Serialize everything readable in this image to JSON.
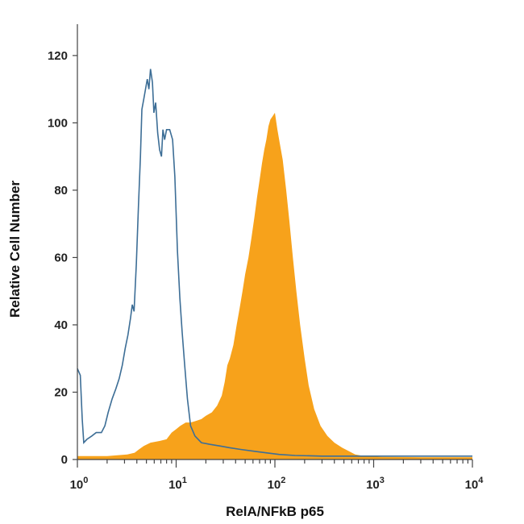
{
  "chart_data": {
    "type": "area",
    "title": "",
    "xlabel": "RelA/NFkB p65",
    "ylabel": "Relative Cell Number",
    "xscale": "log",
    "xlim": [
      1,
      10000
    ],
    "ylim": [
      0,
      125
    ],
    "x_ticks": [
      {
        "value": 1,
        "base": "10",
        "exp": "0"
      },
      {
        "value": 10,
        "base": "10",
        "exp": "1"
      },
      {
        "value": 100,
        "base": "10",
        "exp": "2"
      },
      {
        "value": 1000,
        "base": "10",
        "exp": "3"
      },
      {
        "value": 10000,
        "base": "10",
        "exp": "4"
      }
    ],
    "y_ticks": [
      "0",
      "20",
      "40",
      "60",
      "80",
      "100",
      "120"
    ],
    "grid": false,
    "legend": "none",
    "colors": {
      "stained": "#f7a21b",
      "control": "#3d6e96",
      "axis": "#444444"
    },
    "series": [
      {
        "style": "outline",
        "color": "#3d6e96",
        "points": [
          [
            1.0,
            27
          ],
          [
            1.07,
            25
          ],
          [
            1.12,
            12
          ],
          [
            1.16,
            5
          ],
          [
            1.25,
            6
          ],
          [
            1.4,
            7
          ],
          [
            1.55,
            8
          ],
          [
            1.75,
            8
          ],
          [
            1.9,
            10
          ],
          [
            2.05,
            14
          ],
          [
            2.25,
            18
          ],
          [
            2.45,
            21
          ],
          [
            2.65,
            24
          ],
          [
            2.85,
            28
          ],
          [
            3.05,
            33
          ],
          [
            3.25,
            37
          ],
          [
            3.45,
            42
          ],
          [
            3.6,
            46
          ],
          [
            3.75,
            44
          ],
          [
            3.95,
            58
          ],
          [
            4.15,
            75
          ],
          [
            4.35,
            90
          ],
          [
            4.5,
            104
          ],
          [
            4.7,
            107
          ],
          [
            4.9,
            110
          ],
          [
            5.1,
            113
          ],
          [
            5.3,
            110
          ],
          [
            5.5,
            116
          ],
          [
            5.75,
            112
          ],
          [
            5.95,
            103
          ],
          [
            6.2,
            106
          ],
          [
            6.5,
            97
          ],
          [
            6.8,
            92
          ],
          [
            7.1,
            90
          ],
          [
            7.35,
            98
          ],
          [
            7.65,
            95
          ],
          [
            8.0,
            98
          ],
          [
            8.6,
            98
          ],
          [
            9.2,
            95
          ],
          [
            9.7,
            84
          ],
          [
            10.3,
            62
          ],
          [
            10.9,
            48
          ],
          [
            11.5,
            38
          ],
          [
            12.2,
            28
          ],
          [
            13.0,
            18
          ],
          [
            14.0,
            10
          ],
          [
            15.5,
            7
          ],
          [
            18,
            5
          ],
          [
            22,
            4.5
          ],
          [
            28,
            4
          ],
          [
            35,
            3.5
          ],
          [
            45,
            3
          ],
          [
            60,
            2.5
          ],
          [
            80,
            2
          ],
          [
            110,
            1.5
          ],
          [
            160,
            1.2
          ],
          [
            300,
            1
          ],
          [
            1000,
            1
          ],
          [
            10000,
            1
          ]
        ]
      },
      {
        "style": "filled",
        "color": "#f7a21b",
        "points": [
          [
            1.0,
            1
          ],
          [
            2.0,
            1
          ],
          [
            3.2,
            1.5
          ],
          [
            3.8,
            2
          ],
          [
            4.2,
            3
          ],
          [
            4.7,
            4
          ],
          [
            5.5,
            5
          ],
          [
            6.8,
            5.5
          ],
          [
            8.0,
            6
          ],
          [
            9.0,
            8
          ],
          [
            10.0,
            9
          ],
          [
            11.0,
            10
          ],
          [
            12.5,
            11
          ],
          [
            14.0,
            11
          ],
          [
            16.0,
            11.5
          ],
          [
            18.0,
            12
          ],
          [
            20.0,
            13
          ],
          [
            23.0,
            14
          ],
          [
            26.0,
            16
          ],
          [
            29.0,
            19
          ],
          [
            31.0,
            23
          ],
          [
            33.0,
            28
          ],
          [
            35.0,
            30
          ],
          [
            38.0,
            34
          ],
          [
            41.0,
            40
          ],
          [
            44.0,
            45
          ],
          [
            47.0,
            50
          ],
          [
            50.0,
            55
          ],
          [
            54.0,
            60
          ],
          [
            58.0,
            66
          ],
          [
            62.0,
            72
          ],
          [
            66.0,
            78
          ],
          [
            70.0,
            83
          ],
          [
            74.0,
            88
          ],
          [
            78.0,
            92
          ],
          [
            82.0,
            95
          ],
          [
            86.0,
            99
          ],
          [
            90.0,
            101
          ],
          [
            95.0,
            102
          ],
          [
            100.0,
            103
          ],
          [
            106.0,
            98
          ],
          [
            112.0,
            94
          ],
          [
            120.0,
            89
          ],
          [
            130.0,
            80
          ],
          [
            140.0,
            71
          ],
          [
            152.0,
            60
          ],
          [
            165.0,
            50
          ],
          [
            180.0,
            40
          ],
          [
            200.0,
            30
          ],
          [
            220.0,
            22
          ],
          [
            250.0,
            15
          ],
          [
            290.0,
            10
          ],
          [
            340.0,
            7
          ],
          [
            400.0,
            5
          ],
          [
            480.0,
            3.5
          ],
          [
            560.0,
            2.5
          ],
          [
            650.0,
            1.5
          ],
          [
            800.0,
            1
          ],
          [
            1200.0,
            0.8
          ],
          [
            3000.0,
            0.7
          ],
          [
            10000.0,
            0.7
          ]
        ]
      }
    ]
  }
}
